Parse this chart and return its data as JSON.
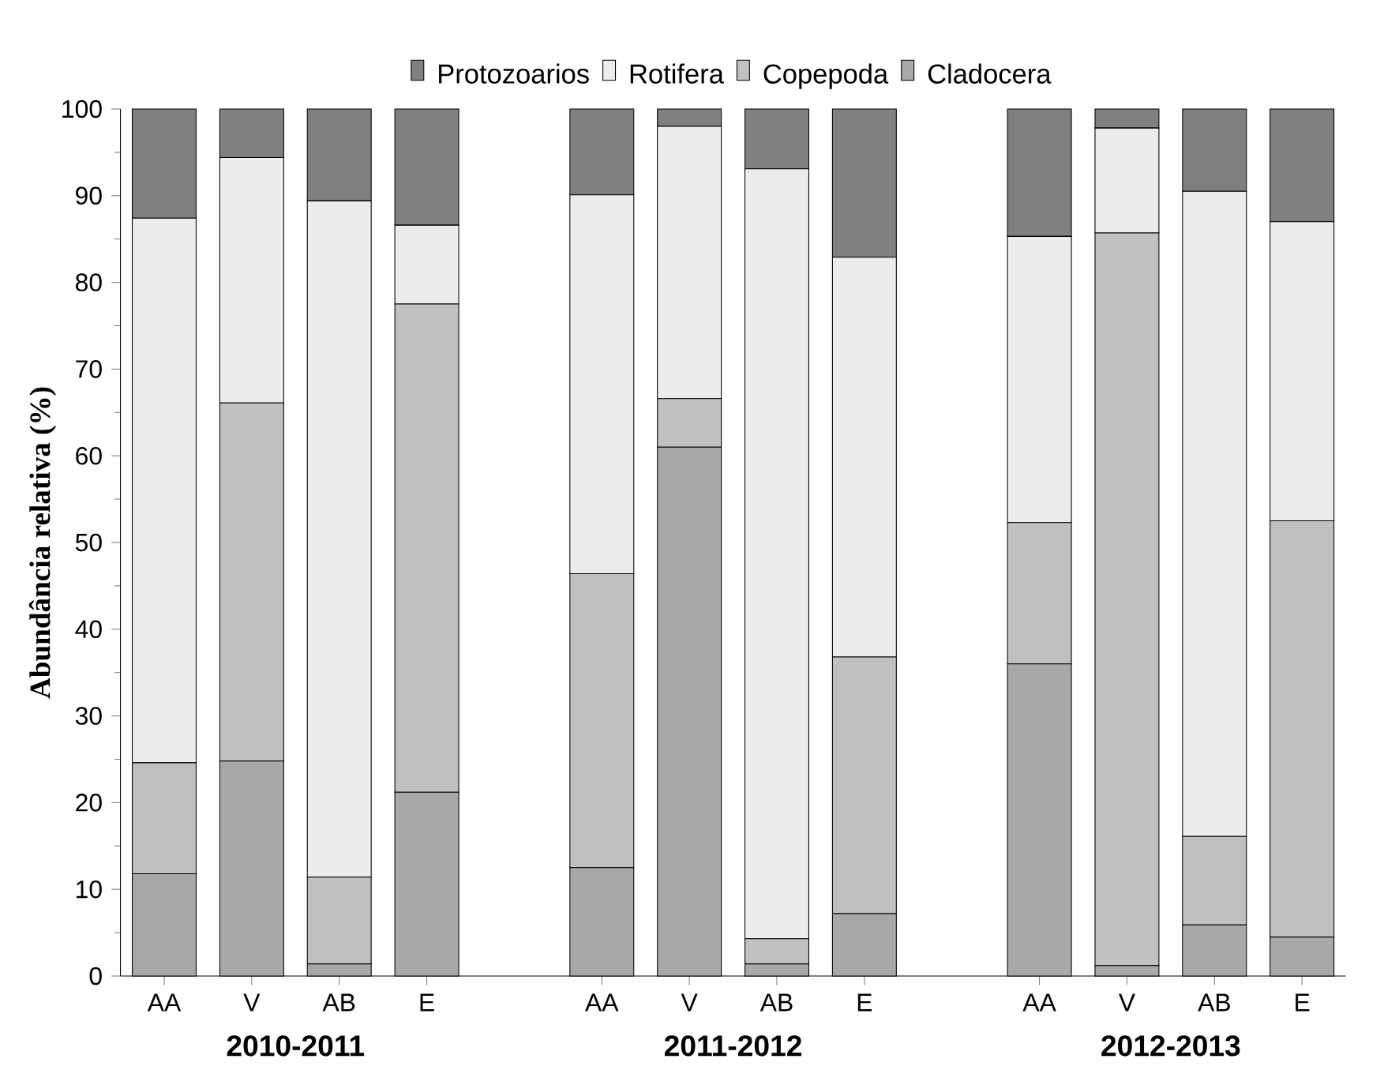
{
  "chart_data": {
    "type": "bar",
    "stacked": true,
    "ylabel": "Abundância relativa (%)",
    "categories": [
      "AA",
      "V",
      "AB",
      "E",
      null,
      "AA",
      "V",
      "AB",
      "E",
      null,
      "AA",
      "V",
      "AB",
      "E"
    ],
    "series": [
      {
        "name": "Cladocera",
        "color": "#a8a8a8",
        "values": [
          11.8,
          24.8,
          1.4,
          21.2,
          null,
          12.5,
          61.0,
          1.4,
          7.2,
          null,
          36.0,
          1.2,
          5.9,
          4.5
        ]
      },
      {
        "name": "Copepoda",
        "color": "#c0c0c0",
        "values": [
          12.8,
          41.3,
          10.0,
          56.3,
          null,
          33.9,
          5.6,
          2.9,
          29.6,
          null,
          16.3,
          84.5,
          10.2,
          48.0
        ]
      },
      {
        "name": "Rotifera",
        "color": "#ececec",
        "values": [
          62.8,
          28.3,
          78.0,
          9.1,
          null,
          43.7,
          31.4,
          88.8,
          46.1,
          null,
          33.0,
          12.1,
          74.4,
          34.5
        ]
      },
      {
        "name": "Protozoarios",
        "color": "#808080",
        "values": [
          12.6,
          5.6,
          10.6,
          13.4,
          null,
          9.9,
          2.0,
          6.9,
          17.1,
          null,
          14.7,
          2.2,
          9.5,
          13.0
        ]
      }
    ],
    "ylim": [
      0,
      100
    ],
    "yticks": [
      0,
      10,
      20,
      30,
      40,
      50,
      60,
      70,
      80,
      90,
      100
    ],
    "legend": "top",
    "annotations": [
      "2010-2011",
      "2011-2012",
      "2012-2013"
    ]
  }
}
